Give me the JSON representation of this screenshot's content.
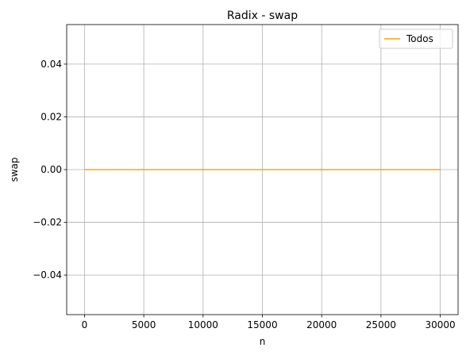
{
  "chart_data": {
    "type": "line",
    "title": "Radix - swap",
    "xlabel": "n",
    "ylabel": "swap",
    "xlim": [
      -1500,
      31500
    ],
    "ylim": [
      -0.055,
      0.055
    ],
    "xticks": [
      0,
      5000,
      10000,
      15000,
      20000,
      25000,
      30000
    ],
    "yticks": [
      -0.04,
      -0.02,
      0.0,
      0.02,
      0.04
    ],
    "xtick_labels": [
      "0",
      "5000",
      "10000",
      "15000",
      "20000",
      "25000",
      "30000"
    ],
    "ytick_labels": [
      "−0.04",
      "−0.02",
      "0.00",
      "0.02",
      "0.04"
    ],
    "grid": true,
    "legend_position": "top-right",
    "series": [
      {
        "name": "Todos",
        "color": "#ffa500",
        "x": [
          0,
          5000,
          10000,
          15000,
          20000,
          25000,
          30000
        ],
        "y": [
          0,
          0,
          0,
          0,
          0,
          0,
          0
        ]
      }
    ]
  }
}
